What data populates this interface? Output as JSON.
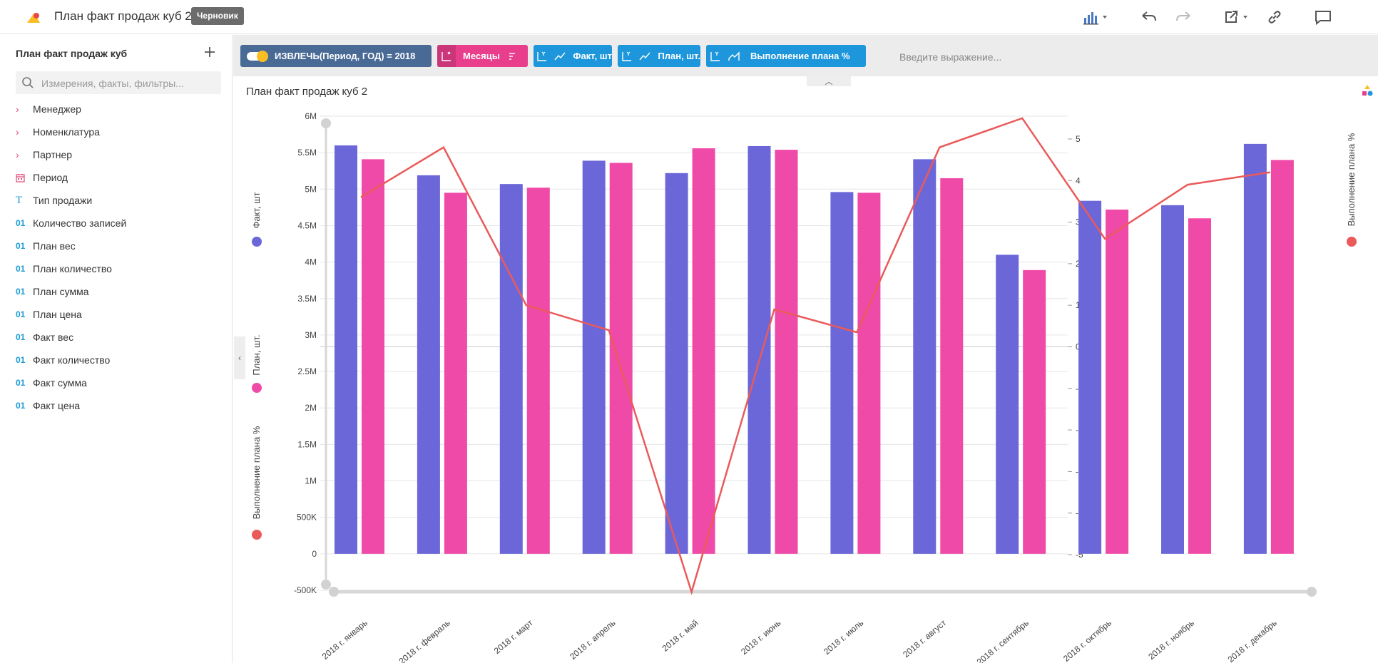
{
  "header": {
    "doc_title": "План факт продаж куб 2",
    "draft_badge": "Черновик"
  },
  "sidebar": {
    "title": "План факт продаж куб",
    "search_placeholder": "Измерения, факты, фильтры...",
    "items": [
      {
        "icon": "chevron-right-icon",
        "glyph": "›",
        "label": "Менеджер"
      },
      {
        "icon": "chevron-right-icon",
        "glyph": "›",
        "label": "Номенклатура"
      },
      {
        "icon": "chevron-right-icon",
        "glyph": "›",
        "label": "Партнер"
      },
      {
        "icon": "calendar-icon",
        "glyph": "",
        "label": "Период"
      },
      {
        "icon": "text-type-icon",
        "glyph": "T",
        "label": "Тип продажи"
      },
      {
        "icon": "numeric-type-icon",
        "glyph": "01",
        "label": "Количество записей"
      },
      {
        "icon": "numeric-type-icon",
        "glyph": "01",
        "label": "План вес"
      },
      {
        "icon": "numeric-type-icon",
        "glyph": "01",
        "label": "План количество"
      },
      {
        "icon": "numeric-type-icon",
        "glyph": "01",
        "label": "План сумма"
      },
      {
        "icon": "numeric-type-icon",
        "glyph": "01",
        "label": "План цена"
      },
      {
        "icon": "numeric-type-icon",
        "glyph": "01",
        "label": "Факт вес"
      },
      {
        "icon": "numeric-type-icon",
        "glyph": "01",
        "label": "Факт количество"
      },
      {
        "icon": "numeric-type-icon",
        "glyph": "01",
        "label": "Факт сумма"
      },
      {
        "icon": "numeric-type-icon",
        "glyph": "01",
        "label": "Факт цена"
      }
    ]
  },
  "shelf": {
    "filter_pill": "ИЗВЛЕЧЬ(Период, ГОД) = 2018",
    "x_pill": "Месяцы",
    "y_pill_1": "Факт, шт",
    "y_pill_2": "План, шт.",
    "y_pill_3": "Выполнение плана %",
    "expression_placeholder": "Введите выражение..."
  },
  "colors": {
    "fact": "#6b67d9",
    "plan": "#f04aa8",
    "percent": "#ea5a5a"
  },
  "chart_data": {
    "type": "bar",
    "title": "План факт продаж куб 2",
    "categories": [
      "2018 г. январь",
      "2018 г. февраль",
      "2018 г. март",
      "2018 г. апрель",
      "2018 г. май",
      "2018 г. июнь",
      "2018 г. июль",
      "2018 г. август",
      "2018 г. сентябрь",
      "2018 г. октябрь",
      "2018 г. ноябрь",
      "2018 г. декабрь"
    ],
    "series": [
      {
        "name": "Факт, шт",
        "type": "bar",
        "axis": "left",
        "values": [
          5600000,
          5190000,
          5070000,
          5390000,
          5220000,
          5590000,
          4960000,
          5410000,
          4100000,
          4840000,
          4780000,
          5620000
        ]
      },
      {
        "name": "План, шт.",
        "type": "bar",
        "axis": "left",
        "values": [
          5410000,
          4950000,
          5020000,
          5360000,
          5560000,
          5540000,
          4950000,
          5150000,
          3890000,
          4720000,
          4600000,
          5400000
        ]
      },
      {
        "name": "Выполнение плана %",
        "type": "line",
        "axis": "right",
        "values": [
          3.6,
          4.8,
          1.0,
          0.4,
          -5.9,
          0.9,
          0.35,
          4.8,
          5.5,
          2.6,
          3.9,
          4.2
        ]
      }
    ],
    "y_left": {
      "label_fact": "Факт, шт",
      "label_plan": "План, шт.",
      "label_percent": "Выполнение плана %",
      "min": -500000,
      "max": 6000000,
      "ticks": [
        {
          "v": 6000000,
          "t": "6M"
        },
        {
          "v": 5500000,
          "t": "5.5M"
        },
        {
          "v": 5000000,
          "t": "5M"
        },
        {
          "v": 4500000,
          "t": "4.5M"
        },
        {
          "v": 4000000,
          "t": "4M"
        },
        {
          "v": 3500000,
          "t": "3.5M"
        },
        {
          "v": 3000000,
          "t": "3M"
        },
        {
          "v": 2500000,
          "t": "2.5M"
        },
        {
          "v": 2000000,
          "t": "2M"
        },
        {
          "v": 1500000,
          "t": "1.5M"
        },
        {
          "v": 1000000,
          "t": "1M"
        },
        {
          "v": 500000,
          "t": "500K"
        },
        {
          "v": 0,
          "t": "0"
        },
        {
          "v": -500000,
          "t": "-500K"
        }
      ]
    },
    "y_right": {
      "label": "Выполнение плана %",
      "min": -5,
      "max": 5.5,
      "ticks": [
        {
          "v": 5,
          "t": "5"
        },
        {
          "v": 4,
          "t": "4"
        },
        {
          "v": 3,
          "t": "3"
        },
        {
          "v": 2,
          "t": "2"
        },
        {
          "v": 1,
          "t": "1"
        },
        {
          "v": 0,
          "t": "0"
        },
        {
          "v": -1,
          "t": "-1"
        },
        {
          "v": -2,
          "t": "-2"
        },
        {
          "v": -3,
          "t": "-3"
        },
        {
          "v": -4,
          "t": "-4"
        },
        {
          "v": -5,
          "t": "-5"
        }
      ]
    },
    "grid": true
  }
}
